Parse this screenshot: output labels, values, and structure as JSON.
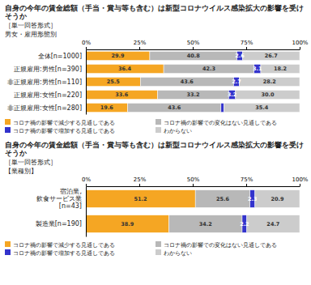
{
  "chart_data": [
    {
      "type": "bar",
      "orientation": "horizontal",
      "stacked": true,
      "data_labels": true,
      "legend": "bottom",
      "grid": false,
      "title": "自身の今年の賃金総額（手当・賞与等も含む）は新型コロナウイルス感染拡大の影響を受けそうか",
      "subtitle": "［単一回答形式］",
      "ylabel": "男女・雇用形態別",
      "categories": [
        "全体[n=1000]",
        "正規雇用:男性[n=390]",
        "非正規雇用:男性[n=110]",
        "正規雇用:女性[n=220]",
        "非正規雇用:女性[n=280]"
      ],
      "xlim": [
        0,
        100
      ],
      "xticks": [
        {
          "value": 0,
          "label": "0%"
        },
        {
          "value": 25,
          "label": "25%"
        },
        {
          "value": 50,
          "label": "50%"
        },
        {
          "value": 75,
          "label": "75%"
        },
        {
          "value": 100,
          "label": "100%"
        }
      ],
      "series": [
        {
          "name": "コロナ禍の影響で減少する見通しである",
          "color": "#f5a623",
          "values": [
            29.9,
            36.4,
            25.5,
            33.6,
            19.6
          ],
          "value_labels": [
            "29.9",
            "36.4",
            "25.5",
            "33.6",
            "19.6"
          ]
        },
        {
          "name": "コロナ禍の影響での変化はない見通しである",
          "color": "#b8b8b8",
          "values": [
            40.8,
            42.3,
            43.6,
            33.2,
            43.6
          ],
          "value_labels": [
            "40.8",
            "42.3",
            "43.6",
            "33.2",
            "43.6"
          ]
        },
        {
          "name": "コロナ禍の影響で増加する見通しである",
          "color": "#3333cc",
          "values": [
            2.6,
            3.1,
            2.7,
            3.2,
            1.4
          ],
          "value_labels": [
            "2.6",
            "3.1",
            "2.7",
            "3.2",
            null
          ]
        },
        {
          "name": "わからない",
          "color": "#cccccc",
          "values": [
            26.7,
            18.2,
            28.2,
            30.0,
            35.4
          ],
          "value_labels": [
            "26.7",
            "18.2",
            "28.2",
            "30.0",
            "35.4"
          ]
        }
      ]
    },
    {
      "type": "bar",
      "orientation": "horizontal",
      "stacked": true,
      "data_labels": true,
      "legend": "bottom",
      "grid": false,
      "title": "自身の今年の賃金総額（手当・賞与等も含む）は新型コロナウイルス感染拡大の影響を受けそうか",
      "subtitle": "［単一回答形式］",
      "ylabel": "【業種別】",
      "categories": [
        "宿泊業,\n飲食サービス業\n[n=43]",
        "製造業[n=190]"
      ],
      "xlim": [
        0,
        100
      ],
      "xticks": [
        {
          "value": 0,
          "label": "0%"
        },
        {
          "value": 25,
          "label": "25%"
        },
        {
          "value": 50,
          "label": "50%"
        },
        {
          "value": 75,
          "label": "75%"
        },
        {
          "value": 100,
          "label": "100%"
        }
      ],
      "series": [
        {
          "name": "コロナ禍の影響で減少する見通しである",
          "color": "#f5a623",
          "values": [
            51.2,
            38.9
          ],
          "value_labels": [
            "51.2",
            "38.9"
          ]
        },
        {
          "name": "コロナ禍の影響での変化はない見通しである",
          "color": "#b8b8b8",
          "values": [
            25.6,
            34.2
          ],
          "value_labels": [
            "25.6",
            "34.2"
          ]
        },
        {
          "name": "コロナ禍の影響で増加する見通しである",
          "color": "#3333cc",
          "values": [
            2.3,
            2.2
          ],
          "value_labels": [
            "2.3",
            "2.2"
          ]
        },
        {
          "name": "わからない",
          "color": "#cccccc",
          "values": [
            20.9,
            24.7
          ],
          "value_labels": [
            "20.9",
            "24.7"
          ]
        }
      ]
    }
  ]
}
